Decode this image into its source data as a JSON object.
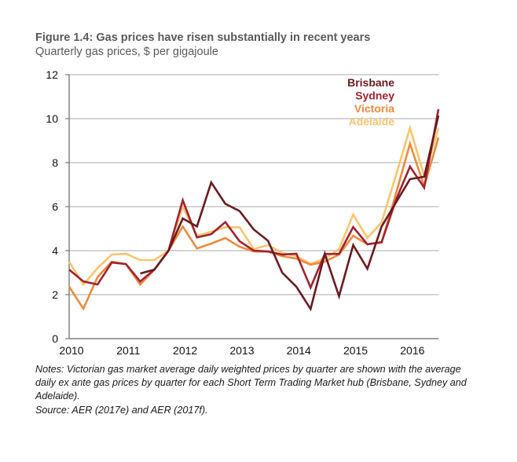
{
  "figure": {
    "title": "Figure 1.4: Gas prices have risen substantially in recent years",
    "subtitle": "Quarterly gas prices, $ per gigajoule",
    "notes": "Notes: Victorian gas market average daily weighted prices by quarter are shown with the average daily ex ante gas prices by quarter for each Short Term Trading Market hub (Brisbane, Sydney and Adelaide).",
    "source": "Source: AER (2017e) and AER (2017f)."
  },
  "chart_data": {
    "type": "line",
    "title": "Figure 1.4: Gas prices have risen substantially in recent years",
    "subtitle": "Quarterly gas prices, $ per gigajoule",
    "xlabel": "",
    "ylabel": "$ per gigajoule",
    "x_start": 2010,
    "x_step": 0.25,
    "xlim": [
      2010,
      2016.5
    ],
    "ylim": [
      0,
      12
    ],
    "xticks": [
      2010,
      2011,
      2012,
      2013,
      2014,
      2015,
      2016
    ],
    "xtick_labels": [
      "2010",
      "2011",
      "2012",
      "2013",
      "2014",
      "2015",
      "2016"
    ],
    "yticks": [
      0,
      2,
      4,
      6,
      8,
      10,
      12
    ],
    "ytick_labels": [
      "0",
      "2",
      "4",
      "6",
      "8",
      "10",
      "12"
    ],
    "grid": true,
    "legend_position": "top-right",
    "series": [
      {
        "name": "Brisbane",
        "color": "#6b1a1e",
        "values": [
          null,
          null,
          null,
          null,
          null,
          2.96,
          3.14,
          4.0,
          5.46,
          5.1,
          7.1,
          6.13,
          5.8,
          4.96,
          4.45,
          3.0,
          2.36,
          1.35,
          3.86,
          1.93,
          4.25,
          3.18,
          5.1,
          6.18,
          7.25,
          7.36,
          10.14
        ]
      },
      {
        "name": "Sydney",
        "color": "#a3222f",
        "values": [
          3.14,
          2.6,
          2.46,
          3.46,
          3.39,
          2.6,
          3.14,
          4.0,
          6.29,
          4.6,
          4.75,
          5.3,
          4.43,
          4.0,
          3.96,
          3.82,
          3.86,
          2.32,
          3.85,
          3.85,
          5.07,
          4.29,
          4.39,
          6.29,
          7.82,
          6.86,
          10.43
        ]
      },
      {
        "name": "Victoria",
        "color": "#ee8a3c",
        "values": [
          2.36,
          1.36,
          2.8,
          3.5,
          3.39,
          2.46,
          3.14,
          4.0,
          5.1,
          4.1,
          4.32,
          4.57,
          4.18,
          3.96,
          3.96,
          3.75,
          3.64,
          3.36,
          3.5,
          3.82,
          4.68,
          4.29,
          4.36,
          6.57,
          8.86,
          6.93,
          9.14
        ]
      },
      {
        "name": "Adelaide",
        "color": "#fbc46c",
        "values": [
          3.5,
          2.46,
          3.2,
          3.82,
          3.86,
          3.57,
          3.57,
          4.0,
          6.0,
          4.68,
          4.86,
          5.06,
          5.06,
          4.07,
          4.25,
          3.9,
          3.75,
          3.4,
          3.64,
          4.07,
          5.64,
          4.57,
          5.29,
          7.4,
          9.57,
          7.4,
          9.57
        ]
      }
    ]
  }
}
